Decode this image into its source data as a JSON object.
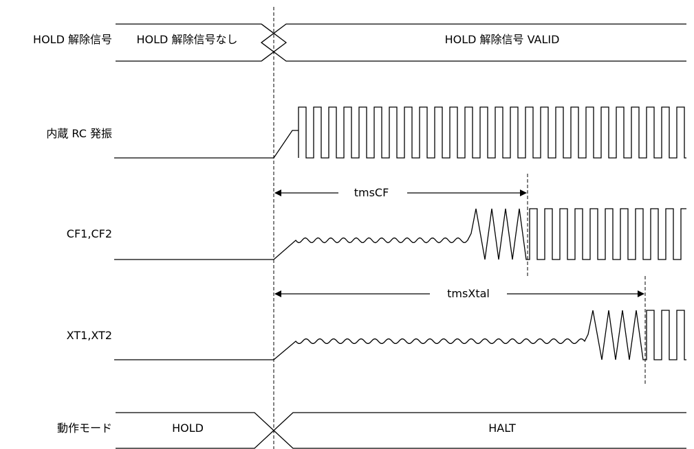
{
  "signals": {
    "hold_release": {
      "label": "HOLD 解除信号",
      "before": "HOLD 解除信号なし",
      "after": "HOLD 解除信号 VALID"
    },
    "rc_osc": {
      "label": "内蔵 RC 発振"
    },
    "cf": {
      "label": "CF1,CF2"
    },
    "xt": {
      "label": "XT1,XT2"
    },
    "mode": {
      "label": "動作モード",
      "before": "HOLD",
      "after": "HALT"
    }
  },
  "intervals": {
    "tms_cf": "tmsCF",
    "tms_xtal": "tmsXtal"
  }
}
